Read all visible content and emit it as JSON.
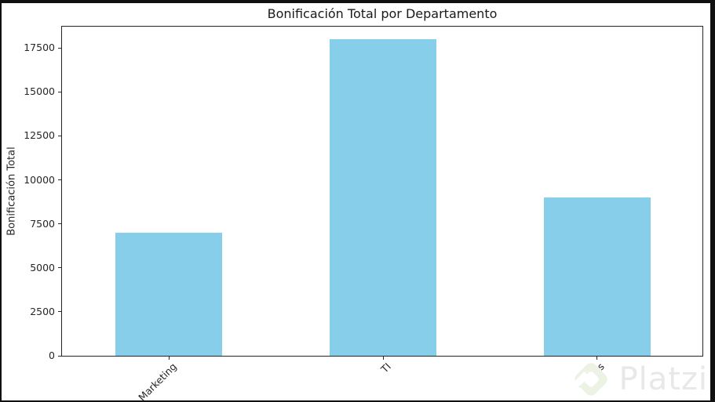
{
  "frame": {
    "color": "#111111"
  },
  "chart_data": {
    "type": "bar",
    "title": "Bonificación Total por Departamento",
    "ylabel": "Bonificación Total",
    "xlabel": "",
    "categories": [
      "Marketing",
      "TI",
      "Ventas"
    ],
    "values": [
      7000,
      18000,
      9000
    ],
    "yticks": [
      0,
      2500,
      5000,
      7500,
      10000,
      12500,
      15000,
      17500
    ],
    "ylim": [
      0,
      18800
    ],
    "bar_color": "#87CEEB",
    "bar_width_fraction": 0.5,
    "x_tick_rotation_deg": 45,
    "grid": false,
    "legend_position": "none"
  },
  "watermark": {
    "text": "Platzi",
    "text_color": "#e8e8e8",
    "logo_color": "#ecf3e4",
    "logo_inner_color": "#ffffff"
  }
}
